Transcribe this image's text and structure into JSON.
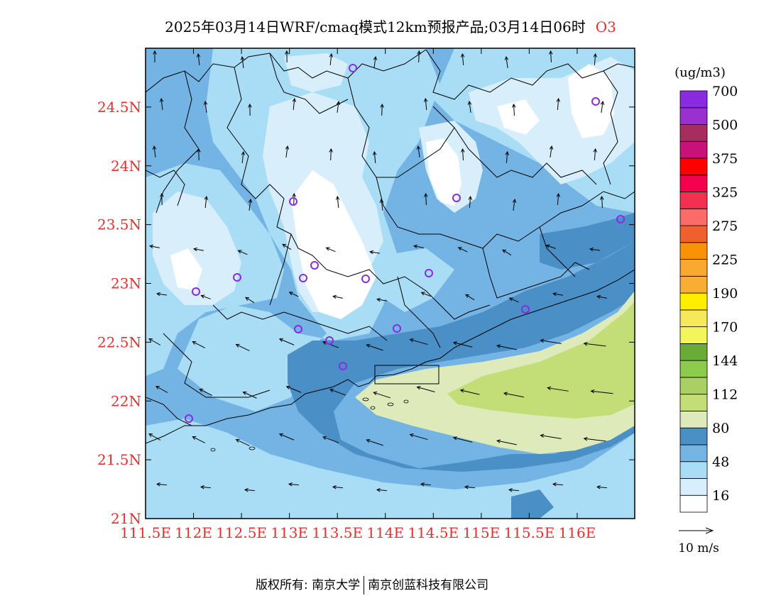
{
  "header": {
    "title": "2025年03月14日WRF/cmaq模式12km预报产品;03月14日06时",
    "species": "O3"
  },
  "map": {
    "type": "pollutant concentration and wind field map",
    "lon_range": [
      111.5,
      116.6
    ],
    "lat_range": [
      21.0,
      25.0
    ],
    "x_tick_labels": [
      "111.5E",
      "112E",
      "112.5E",
      "113E",
      "113.5E",
      "114E",
      "114.5E",
      "115E",
      "115.5E",
      "116E"
    ],
    "y_tick_labels": [
      "21N",
      "21.5N",
      "22N",
      "22.5N",
      "23N",
      "23.5N",
      "24N",
      "24.5N"
    ],
    "tick_color": "#e03030",
    "station_marker_color": "#8a2be2"
  },
  "legend": {
    "unit": "(ug/m3)",
    "colors": [
      "#ffffff",
      "#d8eefa",
      "#a9dcf5",
      "#73b4e4",
      "#4a8fc6",
      "#dfeabb",
      "#c3de76",
      "#a8d062",
      "#8ccb4b",
      "#6aaa36",
      "#f4f55b",
      "#f5e85a",
      "#ffee00",
      "#f7ae33",
      "#f9a830",
      "#f99207",
      "#f0602e",
      "#fb6b68",
      "#f43050",
      "#f5004e",
      "#ff0000",
      "#c8127a",
      "#a82d5f",
      "#9b30d2",
      "#8a2be2"
    ],
    "labels": [
      "16",
      "48",
      "80",
      "112",
      "144",
      "170",
      "190",
      "225",
      "275",
      "325",
      "375",
      "500",
      "700"
    ],
    "wind_reference": "10 m/s"
  },
  "footer": {
    "copyright": "版权所有: 南京大学",
    "company": "南京创蓝科技有限公司"
  }
}
